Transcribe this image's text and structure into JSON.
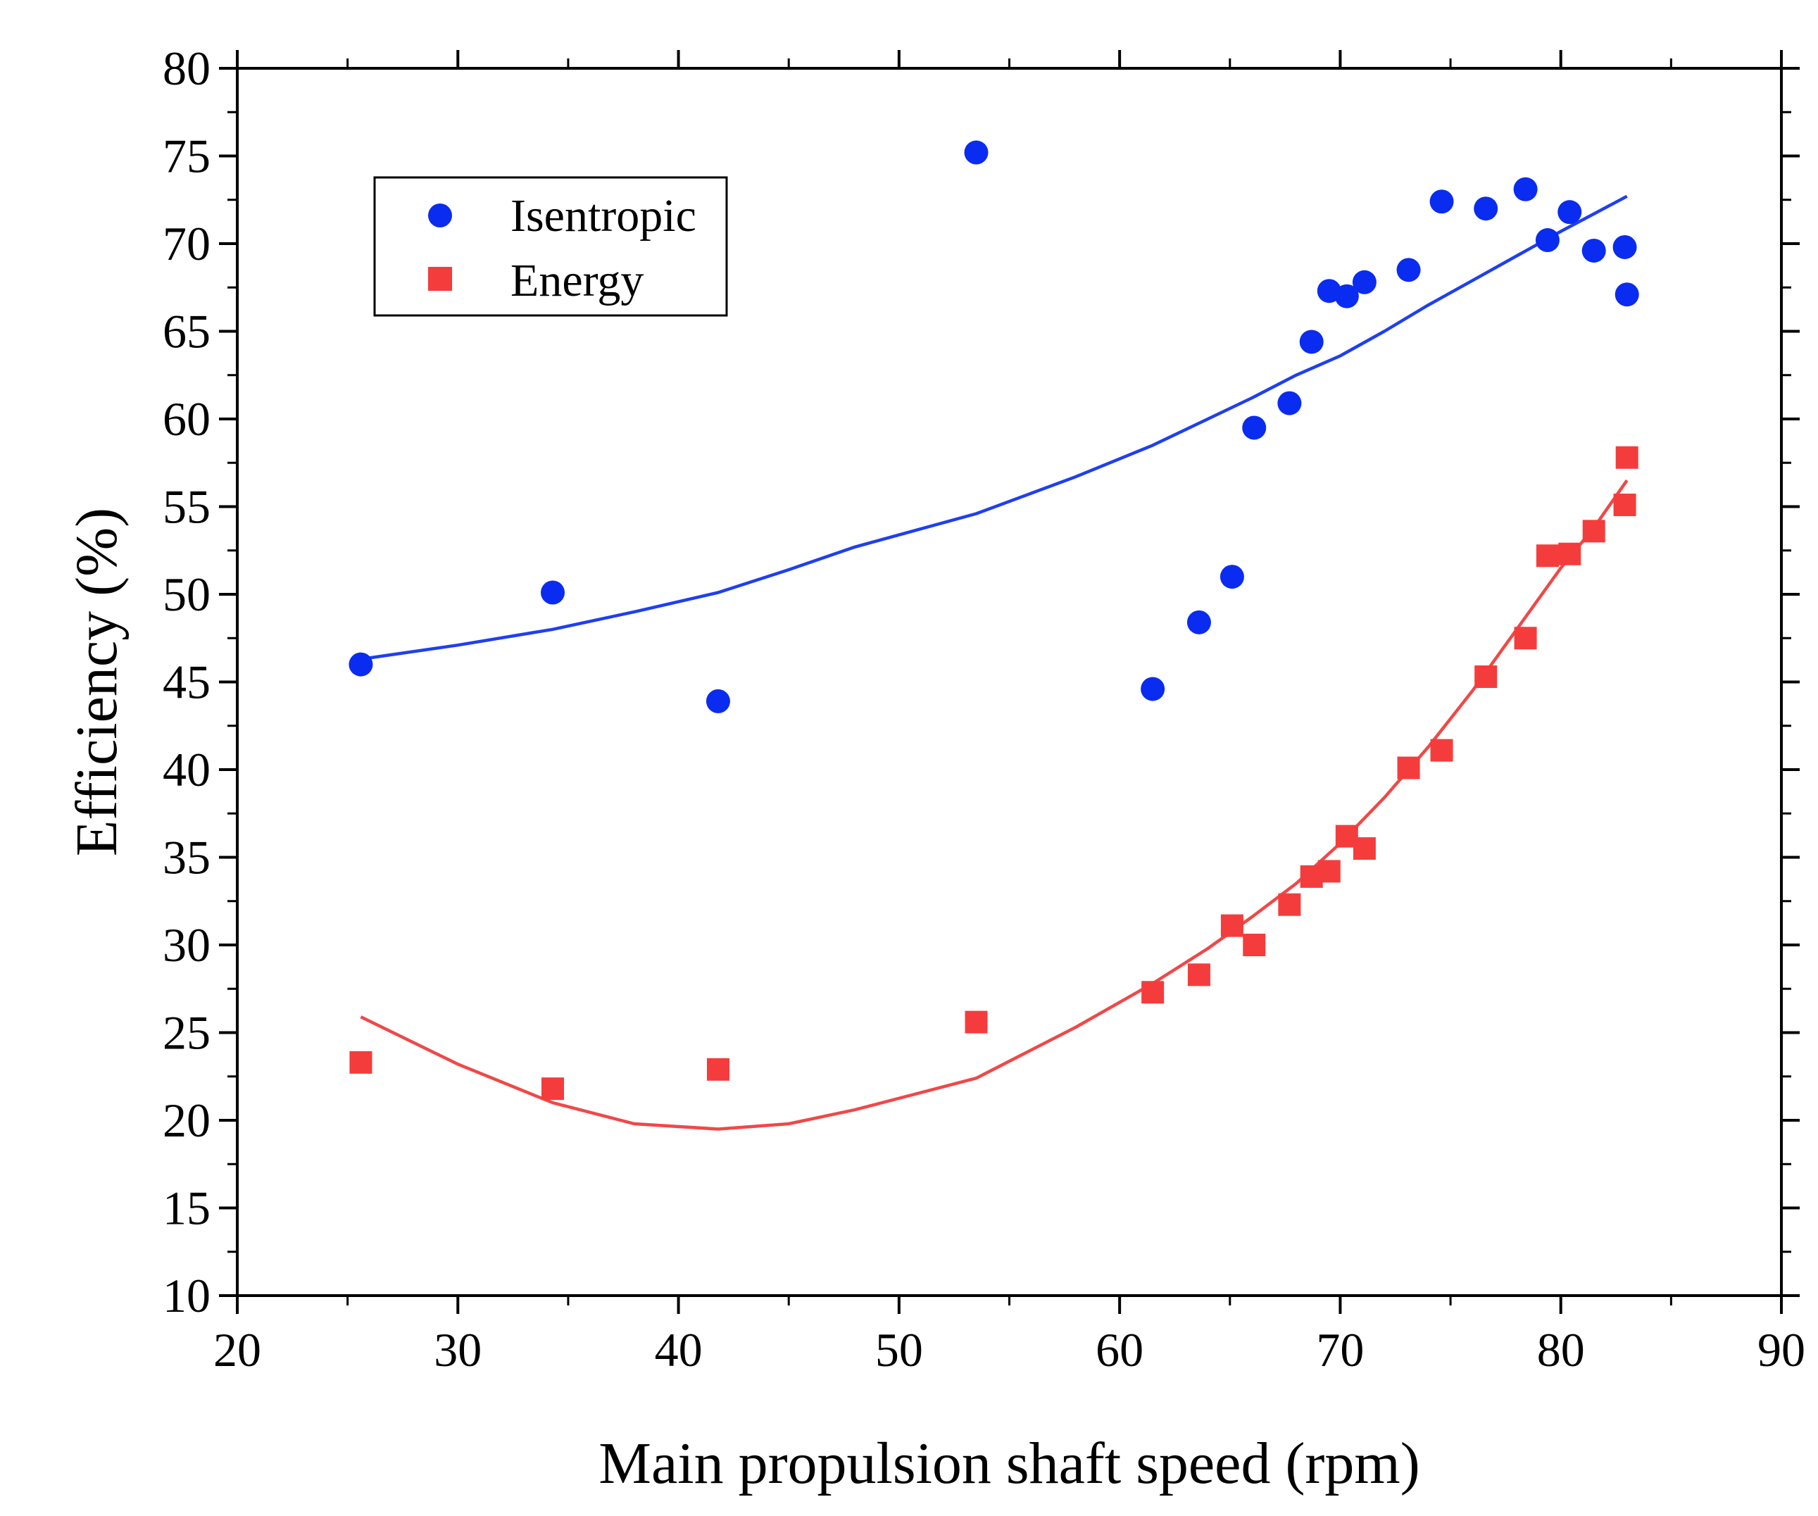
{
  "chart_data": {
    "type": "scatter",
    "title": "",
    "xlabel": "Main propulsion  shaft speed (rpm)",
    "ylabel": "Efficiency (%)",
    "xlim": [
      20,
      90
    ],
    "ylim": [
      10,
      80
    ],
    "x_ticks": [
      20,
      30,
      40,
      50,
      60,
      70,
      80,
      90
    ],
    "y_ticks": [
      10,
      15,
      20,
      25,
      30,
      35,
      40,
      45,
      50,
      55,
      60,
      65,
      70,
      75,
      80
    ],
    "grid": false,
    "legend_position": "top-left",
    "series": [
      {
        "name": "Isentropic",
        "marker": "circle",
        "color": "#0a2cf0",
        "x": [
          25.6,
          34.3,
          41.8,
          53.5,
          61.5,
          63.6,
          65.1,
          66.1,
          67.7,
          68.7,
          69.5,
          70.3,
          71.1,
          73.1,
          74.6,
          76.6,
          78.4,
          79.4,
          80.4,
          81.5,
          82.9,
          83.0
        ],
        "y": [
          46.0,
          50.1,
          43.9,
          75.2,
          44.6,
          48.4,
          51.0,
          59.5,
          60.9,
          64.4,
          67.3,
          67.0,
          67.8,
          68.5,
          72.4,
          72.0,
          73.1,
          70.2,
          71.8,
          69.6,
          69.8,
          67.1
        ]
      },
      {
        "name": "Energy",
        "marker": "square",
        "color": "#f53c3c",
        "x": [
          25.6,
          34.3,
          41.8,
          53.5,
          61.5,
          63.6,
          65.1,
          66.1,
          67.7,
          68.7,
          69.5,
          70.3,
          71.1,
          73.1,
          74.6,
          76.6,
          78.4,
          79.4,
          80.4,
          81.5,
          82.9,
          83.0
        ],
        "y": [
          23.3,
          21.8,
          22.9,
          25.6,
          27.3,
          28.3,
          31.1,
          30.0,
          32.3,
          33.9,
          34.2,
          36.2,
          35.5,
          40.1,
          41.1,
          45.3,
          47.5,
          52.2,
          52.3,
          53.6,
          55.1,
          57.8
        ]
      }
    ],
    "fits": [
      {
        "name": "Isentropic fit",
        "color": "#1f3ff0",
        "x": [
          25.6,
          30,
          34.3,
          38,
          41.8,
          45,
          48,
          53.5,
          58,
          61.5,
          64,
          66,
          68,
          70,
          72,
          74,
          76,
          78,
          80,
          81.5,
          83.0
        ],
        "y": [
          46.3,
          47.1,
          48.0,
          49.0,
          50.1,
          51.4,
          52.7,
          54.6,
          56.7,
          58.5,
          60.0,
          61.2,
          62.5,
          63.6,
          65.0,
          66.5,
          67.9,
          69.3,
          70.7,
          71.7,
          72.7
        ]
      },
      {
        "name": "Energy fit",
        "color": "#f04848",
        "x": [
          25.6,
          30,
          34.3,
          38,
          41.8,
          45,
          48,
          53.5,
          58,
          61.5,
          64,
          66,
          68,
          70,
          72,
          74,
          76,
          78,
          80,
          81.5,
          83.0
        ],
        "y": [
          25.9,
          23.2,
          21.0,
          19.8,
          19.5,
          19.8,
          20.6,
          22.4,
          25.3,
          27.8,
          29.8,
          31.6,
          33.5,
          35.8,
          38.4,
          41.3,
          44.5,
          48.0,
          51.5,
          53.8,
          56.5
        ]
      }
    ]
  }
}
